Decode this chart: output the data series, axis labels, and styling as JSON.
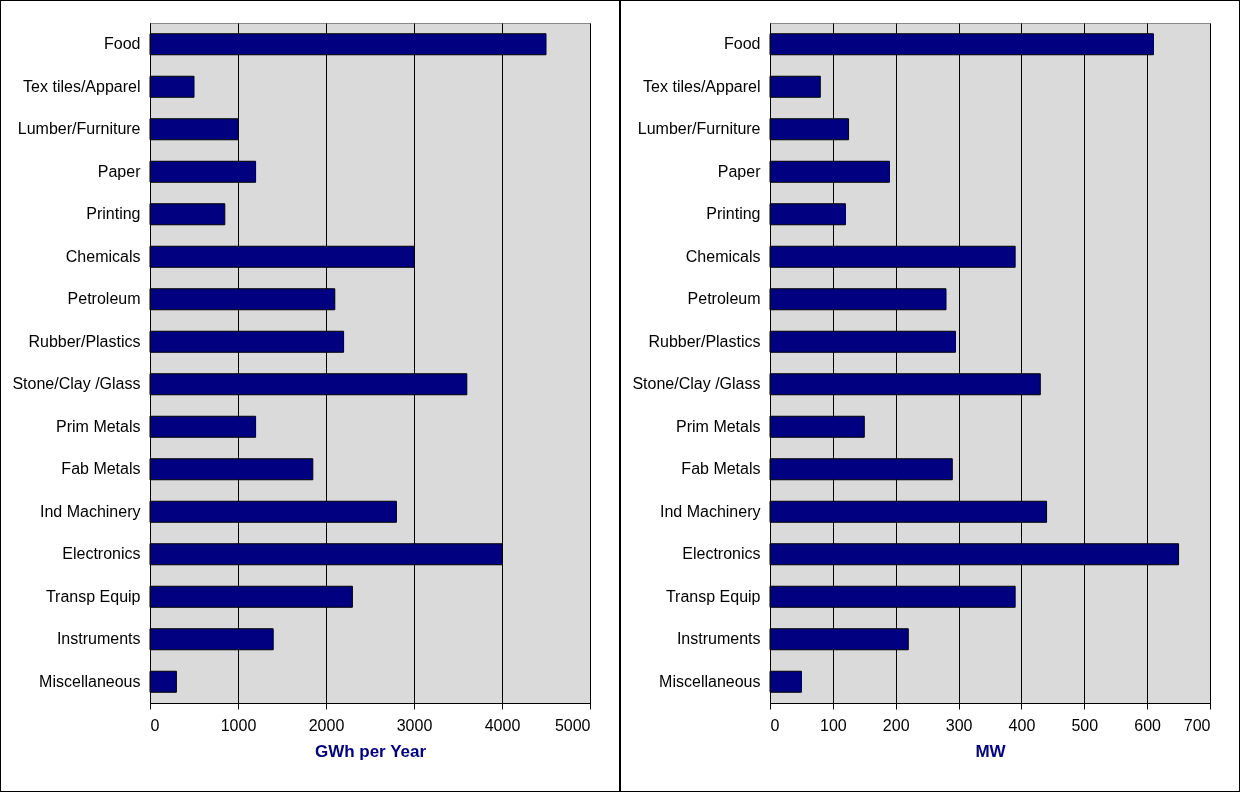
{
  "chart_data": [
    {
      "type": "bar",
      "orientation": "horizontal",
      "xlabel": "GWh per Year",
      "color": "#000080",
      "grid": "x",
      "xlim": [
        0,
        5000
      ],
      "xticks": [
        0,
        1000,
        2000,
        3000,
        4000,
        5000
      ],
      "categories": [
        "Food",
        "Tex tiles/Apparel",
        "Lumber/Furniture",
        "Paper",
        "Printing",
        "Chemicals",
        "Petroleum",
        "Rubber/Plastics",
        "Stone/Clay /Glass",
        "Prim Metals",
        "Fab Metals",
        "Ind Machinery",
        "Electronics",
        "Transp Equip",
        "Instruments",
        "Miscellaneous"
      ],
      "values": [
        4500,
        500,
        1000,
        1200,
        850,
        3000,
        2100,
        2200,
        3600,
        1200,
        1850,
        2800,
        4000,
        2300,
        1400,
        300
      ]
    },
    {
      "type": "bar",
      "orientation": "horizontal",
      "xlabel": "MW",
      "color": "#000080",
      "grid": "x",
      "xlim": [
        0,
        700
      ],
      "xticks": [
        0,
        100,
        200,
        300,
        400,
        500,
        600,
        700
      ],
      "categories": [
        "Food",
        "Tex tiles/Apparel",
        "Lumber/Furniture",
        "Paper",
        "Printing",
        "Chemicals",
        "Petroleum",
        "Rubber/Plastics",
        "Stone/Clay /Glass",
        "Prim Metals",
        "Fab Metals",
        "Ind Machinery",
        "Electronics",
        "Transp Equip",
        "Instruments",
        "Miscellaneous"
      ],
      "values": [
        610,
        80,
        125,
        190,
        120,
        390,
        280,
        295,
        430,
        150,
        290,
        440,
        650,
        390,
        220,
        50
      ]
    }
  ]
}
